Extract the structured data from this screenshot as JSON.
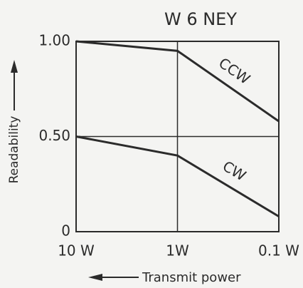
{
  "chart_data": {
    "type": "line",
    "title": "W 6 NEY",
    "x_label": "Transmit power",
    "y_label": "Readability",
    "categories": [
      "10 W",
      "1W",
      "0.1 W"
    ],
    "series": [
      {
        "name": "CCW",
        "color": "#2b2b2b",
        "values": [
          1.0,
          0.95,
          0.58
        ]
      },
      {
        "name": "CW",
        "color": "#2b2b2b",
        "values": [
          0.5,
          0.4,
          0.08
        ]
      }
    ],
    "ylim": [
      0,
      1
    ],
    "yticks": [
      0,
      {
        "value": 0.5,
        "label": "0.50"
      },
      {
        "value": 1,
        "label": "1.00"
      }
    ],
    "grid": true
  }
}
